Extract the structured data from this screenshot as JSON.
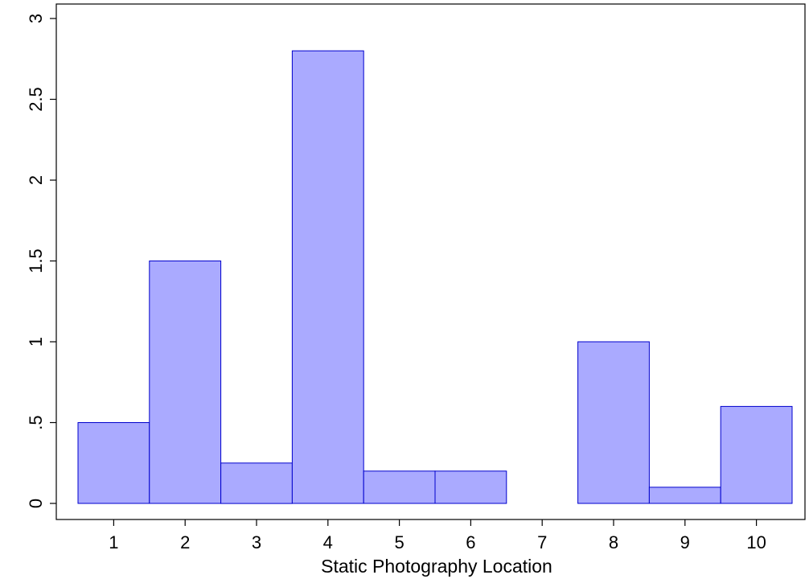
{
  "chart_data": {
    "type": "bar",
    "categories": [
      "1",
      "2",
      "3",
      "4",
      "5",
      "6",
      "7",
      "8",
      "9",
      "10"
    ],
    "values": [
      0.5,
      1.5,
      0.25,
      2.8,
      0.2,
      0.2,
      0,
      1.0,
      0.1,
      0.6
    ],
    "xlabel": "Static Photography Location",
    "ylabel": "",
    "ylim": [
      0,
      3
    ],
    "yticks": [
      {
        "value": 0,
        "label": "0"
      },
      {
        "value": 0.5,
        "label": ".5"
      },
      {
        "value": 1,
        "label": "1"
      },
      {
        "value": 1.5,
        "label": "1.5"
      },
      {
        "value": 2,
        "label": "2"
      },
      {
        "value": 2.5,
        "label": "2.5"
      },
      {
        "value": 3,
        "label": "3"
      }
    ],
    "grid": false,
    "legend": "none",
    "colors": {
      "bar_fill": "#aaaaff",
      "bar_stroke": "#0000cc",
      "axis": "#000000"
    }
  }
}
